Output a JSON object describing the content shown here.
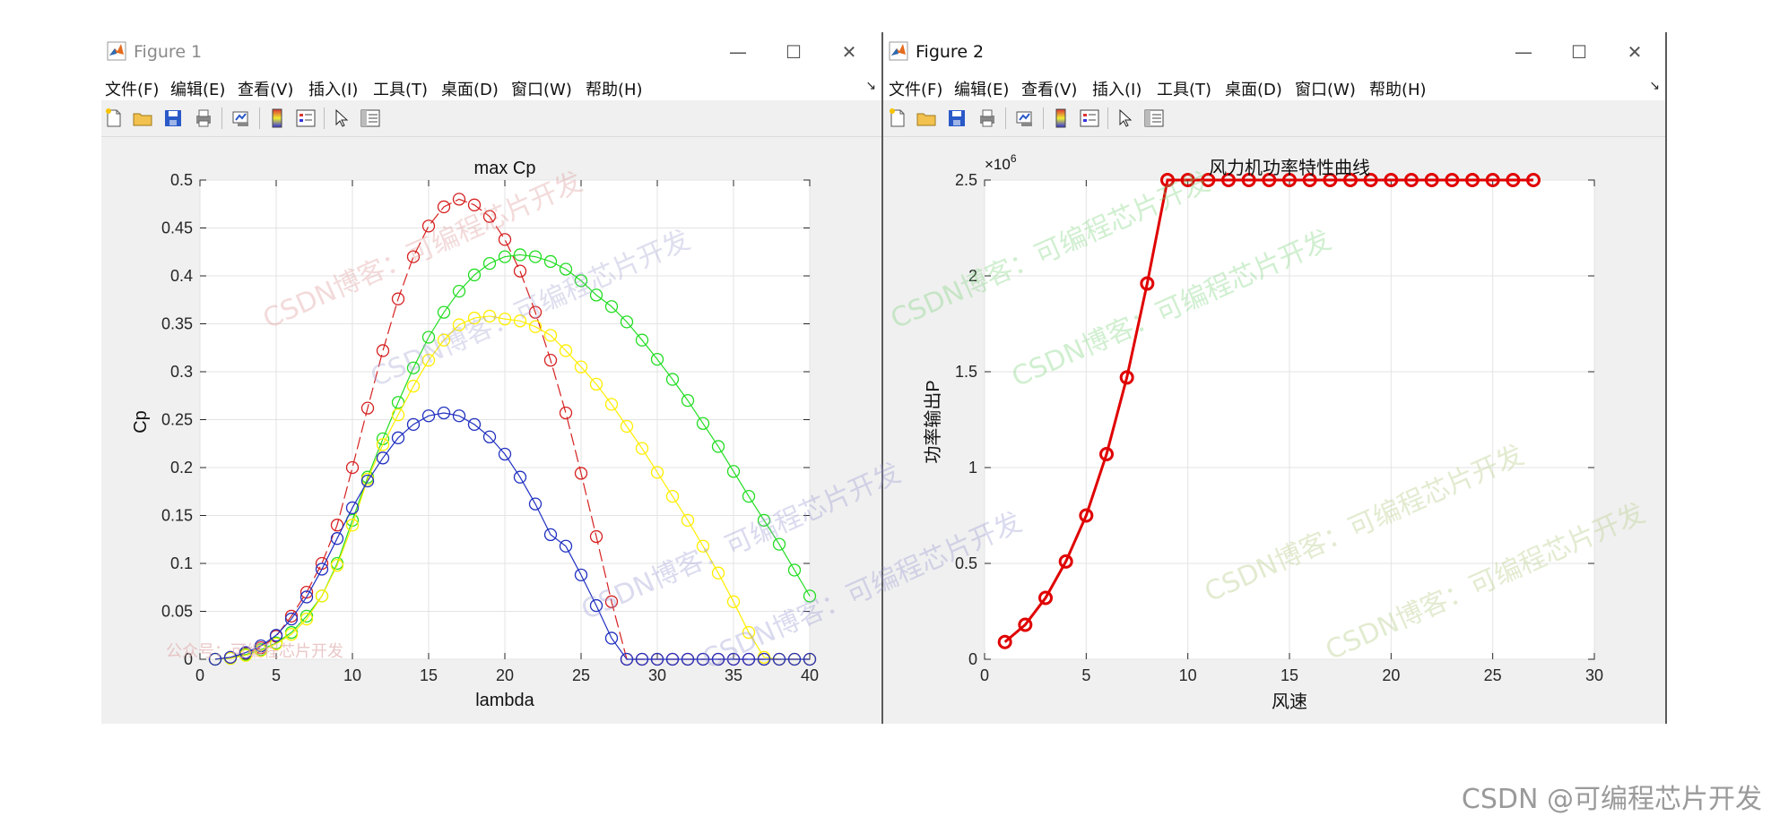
{
  "windows": [
    {
      "title": "Figure 1",
      "menu": [
        "文件(F)",
        "编辑(E)",
        "查看(V)",
        "插入(I)",
        "工具(T)",
        "桌面(D)",
        "窗口(W)",
        "帮助(H)"
      ],
      "toolbar": [
        "new-file-icon",
        "open-folder-icon",
        "save-icon",
        "print-icon",
        "link-plot-icon",
        "colorbar-icon",
        "legend-icon",
        "pointer-icon",
        "property-editor-icon"
      ]
    },
    {
      "title": "Figure 2",
      "menu": [
        "文件(F)",
        "编辑(E)",
        "查看(V)",
        "插入(I)",
        "工具(T)",
        "桌面(D)",
        "窗口(W)",
        "帮助(H)"
      ],
      "toolbar": [
        "new-file-icon",
        "open-folder-icon",
        "save-icon",
        "print-icon",
        "link-plot-icon",
        "colorbar-icon",
        "legend-icon",
        "pointer-icon",
        "property-editor-icon"
      ]
    }
  ],
  "chart_data": [
    {
      "type": "line",
      "title": "max Cp",
      "xlabel": "lambda",
      "ylabel": "Cp",
      "xlim": [
        0,
        40
      ],
      "ylim": [
        0,
        0.5
      ],
      "xticks": [
        "0",
        "5",
        "10",
        "15",
        "20",
        "25",
        "30",
        "35",
        "40"
      ],
      "yticks": [
        "0",
        "0.05",
        "0.1",
        "0.15",
        "0.2",
        "0.25",
        "0.3",
        "0.35",
        "0.4",
        "0.45",
        "0.5"
      ],
      "grid": true,
      "marker": "circle",
      "x": [
        1,
        2,
        3,
        4,
        5,
        6,
        7,
        8,
        9,
        10,
        11,
        12,
        13,
        14,
        15,
        16,
        17,
        18,
        19,
        20,
        21,
        22,
        23,
        24,
        25,
        26,
        27,
        28,
        29,
        30,
        31,
        32,
        33,
        34,
        35,
        36,
        37,
        38,
        39,
        40
      ],
      "series": [
        {
          "color": "#d62020",
          "dashed": true,
          "values": [
            0,
            0.002,
            0.006,
            0.012,
            0.024,
            0.045,
            0.07,
            0.1,
            0.14,
            0.2,
            0.262,
            0.322,
            0.376,
            0.42,
            0.452,
            0.472,
            0.48,
            0.474,
            0.462,
            0.438,
            0.405,
            0.362,
            0.312,
            0.257,
            0.194,
            0.128,
            0.06,
            0,
            0,
            0,
            0,
            0,
            0,
            0,
            0,
            0,
            0,
            0,
            0,
            0
          ]
        },
        {
          "color": "#22dd22",
          "dashed": false,
          "values": [
            0,
            0.001,
            0.005,
            0.01,
            0.017,
            0.028,
            0.045,
            0.066,
            0.1,
            0.145,
            0.19,
            0.23,
            0.268,
            0.304,
            0.336,
            0.362,
            0.384,
            0.401,
            0.413,
            0.42,
            0.422,
            0.42,
            0.415,
            0.407,
            0.395,
            0.38,
            0.368,
            0.352,
            0.333,
            0.313,
            0.292,
            0.27,
            0.246,
            0.222,
            0.196,
            0.17,
            0.145,
            0.12,
            0.093,
            0.066
          ]
        },
        {
          "color": "#ffee00",
          "dashed": false,
          "values": [
            0,
            0.001,
            0.004,
            0.009,
            0.016,
            0.026,
            0.042,
            0.066,
            0.098,
            0.14,
            0.188,
            0.224,
            0.255,
            0.285,
            0.312,
            0.333,
            0.349,
            0.356,
            0.358,
            0.355,
            0.353,
            0.347,
            0.338,
            0.322,
            0.305,
            0.287,
            0.266,
            0.243,
            0.22,
            0.195,
            0.17,
            0.145,
            0.118,
            0.09,
            0.06,
            0.028,
            0.002,
            0,
            0,
            0
          ]
        },
        {
          "color": "#2030c0",
          "dashed": false,
          "values": [
            0,
            0.002,
            0.007,
            0.014,
            0.025,
            0.042,
            0.065,
            0.094,
            0.126,
            0.158,
            0.186,
            0.21,
            0.231,
            0.245,
            0.254,
            0.257,
            0.254,
            0.245,
            0.232,
            0.214,
            0.19,
            0.162,
            0.13,
            0.118,
            0.088,
            0.056,
            0.022,
            0,
            0,
            0,
            0,
            0,
            0,
            0,
            0,
            0,
            0,
            0,
            0,
            0
          ]
        }
      ],
      "annotations": [
        "公众号：可编程芯片开发"
      ]
    },
    {
      "type": "line",
      "title": "风力机功率特性曲线",
      "xlabel": "风速",
      "ylabel": "功率输出P",
      "exponent": "×10",
      "exponent_power": "6",
      "xlim": [
        0,
        30
      ],
      "ylim": [
        0,
        2.5
      ],
      "xticks": [
        "0",
        "5",
        "10",
        "15",
        "20",
        "25",
        "30"
      ],
      "yticks": [
        "0",
        "0.5",
        "1",
        "1.5",
        "2",
        "2.5"
      ],
      "grid": true,
      "marker": "circle",
      "series": [
        {
          "color": "#e00000",
          "x": [
            1,
            2,
            3,
            4,
            5,
            6,
            7,
            8,
            9,
            10,
            11,
            12,
            13,
            14,
            15,
            16,
            17,
            18,
            19,
            20,
            21,
            22,
            23,
            24,
            25,
            26,
            27
          ],
          "values": [
            0.09,
            0.18,
            0.32,
            0.51,
            0.75,
            1.07,
            1.47,
            1.96,
            2.5,
            2.5,
            2.5,
            2.5,
            2.5,
            2.5,
            2.5,
            2.5,
            2.5,
            2.5,
            2.5,
            2.5,
            2.5,
            2.5,
            2.5,
            2.5,
            2.5,
            2.5,
            2.5
          ]
        }
      ]
    }
  ],
  "watermark": "CSDN博客：可编程芯片开发",
  "footer_watermark": "CSDN @可编程芯片开发"
}
